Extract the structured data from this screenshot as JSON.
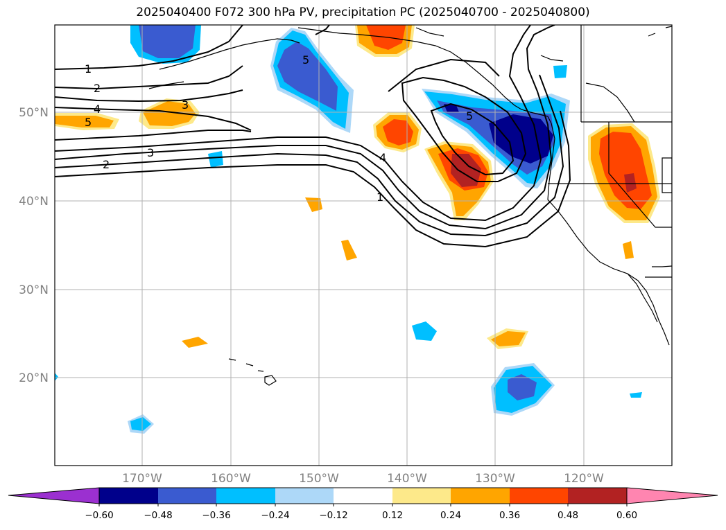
{
  "title": "2025040400 F072 300 hPa PV, precipitation PC (2025040700 - 2025040800)",
  "lat_labels": [
    "50°N",
    "40°N",
    "30°N",
    "20°N"
  ],
  "lon_labels": [
    "170°W",
    "160°W",
    "150°W",
    "140°W",
    "130°W",
    "120°W"
  ],
  "contour_labels": [
    "1",
    "2",
    "3",
    "4",
    "5",
    "3",
    "2",
    "4",
    "5",
    "1",
    "5"
  ],
  "colorbar": {
    "ticks": [
      "−0.60",
      "−0.48",
      "−0.36",
      "−0.24",
      "−0.12",
      "0.12",
      "0.24",
      "0.36",
      "0.48",
      "0.60"
    ],
    "colors": [
      "#9b30d0",
      "#00008b",
      "#3a5bd0",
      "#00bfff",
      "#add8f8",
      "#ffffff",
      "#fde98a",
      "#ffa500",
      "#ff4500",
      "#b22222",
      "#ff85b0"
    ]
  }
}
